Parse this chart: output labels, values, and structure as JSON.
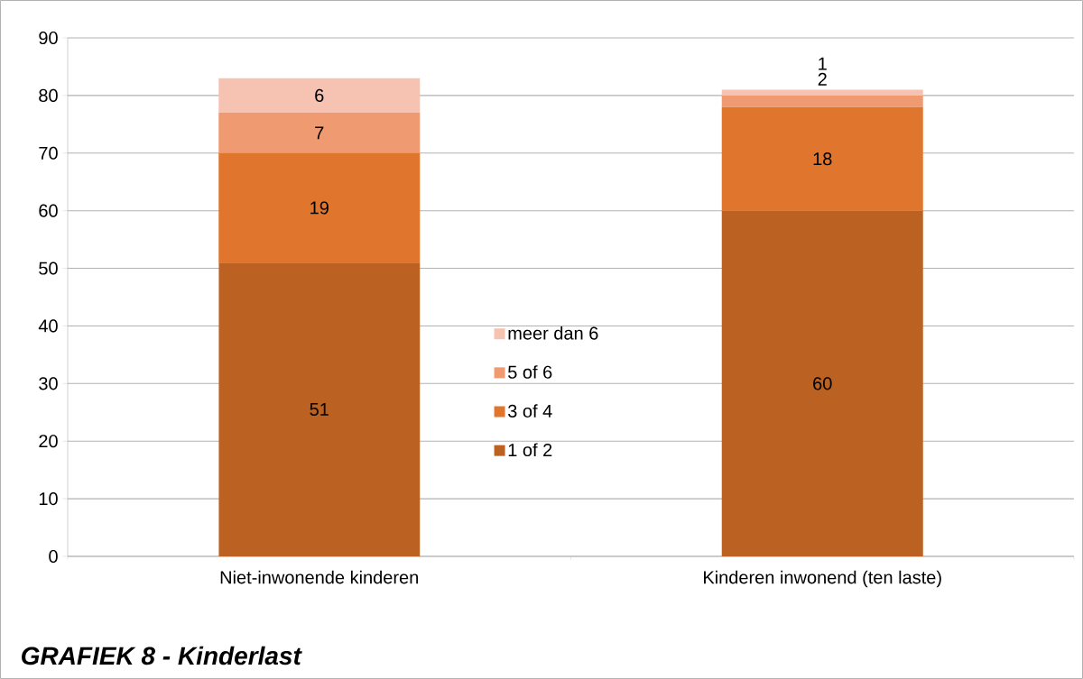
{
  "chart_data": {
    "type": "bar",
    "stacked": true,
    "title": "GRAFIEK 8 - Kinderlast",
    "categories": [
      "Niet-inwonende kinderen",
      "Kinderen inwonend (ten laste)"
    ],
    "series": [
      {
        "name": "1 of 2",
        "color": "#bb6122",
        "values": [
          51,
          60
        ]
      },
      {
        "name": "3 of 4",
        "color": "#e0752d",
        "values": [
          19,
          18
        ]
      },
      {
        "name": "5 of 6",
        "color": "#f09a72",
        "values": [
          7,
          2
        ]
      },
      {
        "name": "meer dan 6",
        "color": "#f6c3b2",
        "values": [
          6,
          1
        ]
      }
    ],
    "ylim": [
      0,
      90
    ],
    "yticks": [
      0,
      10,
      20,
      30,
      40,
      50,
      60,
      70,
      80,
      90
    ],
    "grid": "y",
    "legend": "center",
    "data_labels": true
  }
}
